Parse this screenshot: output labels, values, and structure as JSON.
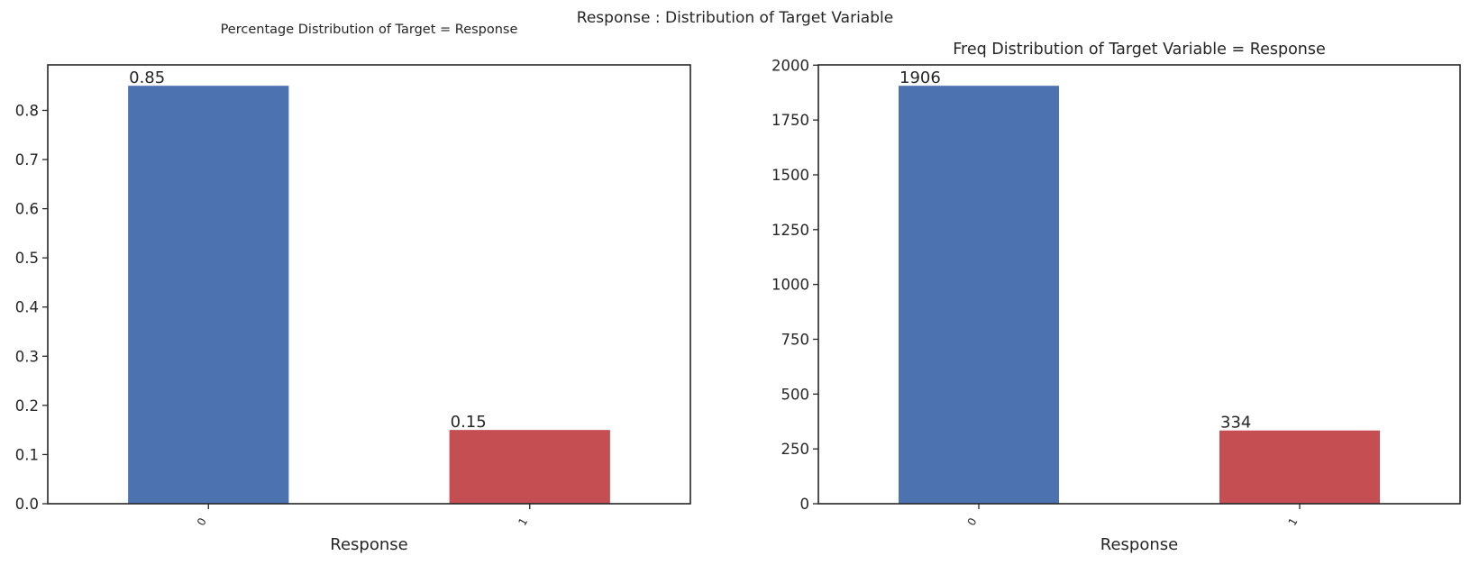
{
  "figure": {
    "suptitle": "Response : Distribution of Target Variable"
  },
  "chart_data": [
    {
      "type": "bar",
      "title": "Percentage Distribution of Target = Response",
      "xlabel": "Response",
      "ylabel": "",
      "categories": [
        "0",
        "1"
      ],
      "values": [
        0.85,
        0.15
      ],
      "bar_labels": [
        "0.85",
        "0.15"
      ],
      "bar_colors": [
        "#4c72b0",
        "#c44e52"
      ],
      "yticks": [
        0.0,
        0.1,
        0.2,
        0.3,
        0.4,
        0.5,
        0.6,
        0.7,
        0.8
      ],
      "ytick_labels": [
        "0.0",
        "0.1",
        "0.2",
        "0.3",
        "0.4",
        "0.5",
        "0.6",
        "0.7",
        "0.8"
      ],
      "ylim": [
        0,
        0.8925
      ],
      "grid": false,
      "legend": "none"
    },
    {
      "type": "bar",
      "title": "Freq Distribution of Target Variable = Response",
      "xlabel": "Response",
      "ylabel": "",
      "categories": [
        "0",
        "1"
      ],
      "values": [
        1906,
        334
      ],
      "bar_labels": [
        "1906",
        "334"
      ],
      "bar_colors": [
        "#4c72b0",
        "#c44e52"
      ],
      "yticks": [
        0,
        250,
        500,
        750,
        1000,
        1250,
        1500,
        1750,
        2000
      ],
      "ytick_labels": [
        "0",
        "250",
        "500",
        "750",
        "1000",
        "1250",
        "1500",
        "1750",
        "2000"
      ],
      "ylim": [
        0,
        2001.3
      ],
      "grid": false,
      "legend": "none"
    }
  ]
}
